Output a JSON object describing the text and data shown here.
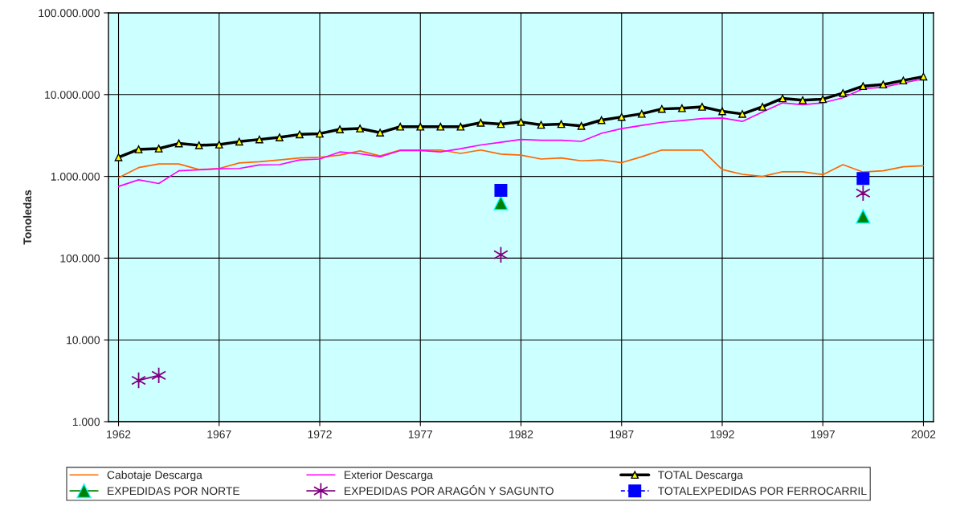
{
  "chart_data": {
    "type": "line",
    "ylabel": "Tonoledas",
    "log": "y",
    "grid": true,
    "legend": "bottom",
    "x": [
      1962,
      1963,
      1964,
      1965,
      1966,
      1967,
      1968,
      1969,
      1970,
      1971,
      1972,
      1973,
      1974,
      1975,
      1976,
      1977,
      1978,
      1979,
      1980,
      1981,
      1982,
      1983,
      1984,
      1985,
      1986,
      1987,
      1988,
      1989,
      1990,
      1991,
      1992,
      1993,
      1994,
      1995,
      1996,
      1997,
      1998,
      1999,
      2000,
      2001,
      2002
    ],
    "xlim": [
      1961.5,
      2002.5
    ],
    "xticks": [
      1962,
      1967,
      1972,
      1977,
      1982,
      1987,
      1992,
      1997,
      2002
    ],
    "ylim": [
      1000,
      100000000
    ],
    "yticks": [
      {
        "value": 1000,
        "label": "1.000"
      },
      {
        "value": 10000,
        "label": "10.000"
      },
      {
        "value": 100000,
        "label": "100.000"
      },
      {
        "value": 1000000,
        "label": "1.000.000"
      },
      {
        "value": 10000000,
        "label": "10.000.000"
      },
      {
        "value": 100000000,
        "label": "100.000.000"
      }
    ],
    "series": [
      {
        "name": "Cabotaje Descarga",
        "color": "#ff6600",
        "marker": "none",
        "line_style": "solid",
        "values": [
          965000,
          1280000,
          1420000,
          1420000,
          1210000,
          1250000,
          1460000,
          1510000,
          1590000,
          1680000,
          1710000,
          1820000,
          2050000,
          1780000,
          2100000,
          2100000,
          2100000,
          1910000,
          2100000,
          1870000,
          1820000,
          1630000,
          1680000,
          1550000,
          1590000,
          1470000,
          1740000,
          2100000,
          2100000,
          2100000,
          1210000,
          1060000,
          1000000,
          1140000,
          1140000,
          1050000,
          1390000,
          1130000,
          1170000,
          1310000,
          1350000
        ]
      },
      {
        "name": "Exterior Descarga",
        "color": "#ff00ff",
        "marker": "none",
        "line_style": "solid",
        "values": [
          754000,
          907000,
          817000,
          1170000,
          1200000,
          1240000,
          1250000,
          1380000,
          1390000,
          1590000,
          1630000,
          1990000,
          1890000,
          1740000,
          2070000,
          2070000,
          1990000,
          2180000,
          2420000,
          2610000,
          2830000,
          2770000,
          2770000,
          2680000,
          3360000,
          3840000,
          4200000,
          4590000,
          4810000,
          5100000,
          5180000,
          4700000,
          6110000,
          7930000,
          7530000,
          7930000,
          9140000,
          11800000,
          12300000,
          13900000,
          15600000
        ]
      },
      {
        "name": "TOTAL Descarga",
        "color": "#000000",
        "marker": "triangle",
        "line_style": "solid",
        "values": [
          1710000,
          2140000,
          2190000,
          2530000,
          2400000,
          2450000,
          2660000,
          2830000,
          3000000,
          3260000,
          3330000,
          3760000,
          3850000,
          3430000,
          4050000,
          4050000,
          4050000,
          4050000,
          4530000,
          4360000,
          4630000,
          4270000,
          4360000,
          4140000,
          4880000,
          5330000,
          5830000,
          6680000,
          6830000,
          7100000,
          6250000,
          5800000,
          7100000,
          9000000,
          8550000,
          8800000,
          10450000,
          12700000,
          13300000,
          14900000,
          16600000
        ]
      },
      {
        "name": "EXPEDIDAS POR NORTE",
        "type": "scatter",
        "color": "#008000",
        "marker": "triangle",
        "line_style": "solid",
        "values": [
          null,
          null,
          null,
          null,
          null,
          null,
          null,
          null,
          null,
          null,
          null,
          null,
          null,
          null,
          null,
          null,
          null,
          null,
          null,
          474000,
          null,
          null,
          null,
          null,
          null,
          null,
          null,
          null,
          null,
          null,
          null,
          null,
          null,
          null,
          null,
          null,
          null,
          324000,
          null,
          null,
          null
        ]
      },
      {
        "name": "EXPEDIDAS POR ARAGÓN Y SAGUNTO",
        "color": "#800080",
        "marker": "cross",
        "line_style": "solid",
        "values": [
          null,
          3200,
          3680,
          null,
          null,
          null,
          null,
          null,
          null,
          null,
          null,
          null,
          null,
          null,
          null,
          null,
          null,
          null,
          null,
          110000,
          null,
          null,
          null,
          null,
          null,
          null,
          null,
          null,
          null,
          null,
          null,
          null,
          null,
          null,
          null,
          null,
          null,
          625000,
          null,
          null,
          null
        ]
      },
      {
        "name": "TOTALEXPEDIDAS POR FERROCARRIL",
        "type": "scatter",
        "color": "#0000ff",
        "marker": "square",
        "line_style": "dashed",
        "values": [
          null,
          null,
          null,
          null,
          null,
          null,
          null,
          null,
          null,
          null,
          null,
          null,
          null,
          null,
          null,
          null,
          null,
          null,
          null,
          674000,
          null,
          null,
          null,
          null,
          null,
          null,
          null,
          null,
          null,
          null,
          null,
          null,
          null,
          null,
          null,
          null,
          null,
          944000,
          null,
          null,
          null
        ]
      }
    ]
  }
}
